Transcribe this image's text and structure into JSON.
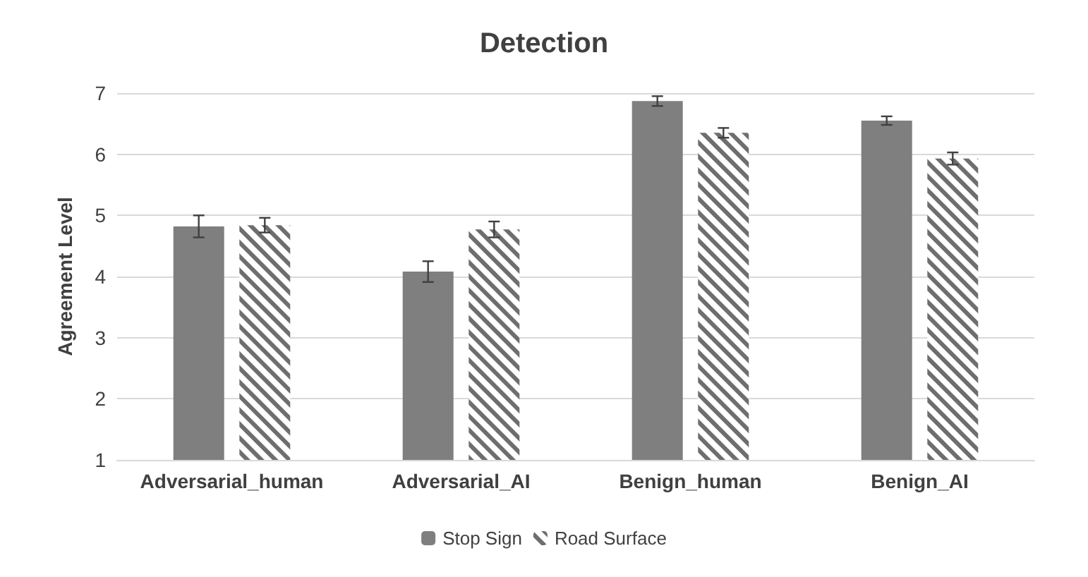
{
  "chart_data": {
    "type": "bar",
    "title": "Detection",
    "ylabel": "Agreement Level",
    "categories": [
      "Adversarial_human",
      "Adversarial_AI",
      "Benign_human",
      "Benign_AI"
    ],
    "series": [
      {
        "name": "Stop Sign",
        "color": "#7f7f7f",
        "values": [
          4.82,
          4.08,
          6.87,
          6.55
        ],
        "errors": [
          0.18,
          0.17,
          0.08,
          0.07
        ]
      },
      {
        "name": "Road Surface",
        "color": "#6e6e6e",
        "values": [
          4.84,
          4.77,
          6.35,
          5.93
        ],
        "errors": [
          0.12,
          0.13,
          0.08,
          0.1
        ]
      }
    ],
    "ylim": [
      1,
      7
    ],
    "yticks": [
      1,
      2,
      3,
      4,
      5,
      6,
      7
    ],
    "grid": "y",
    "legend": "bottom"
  }
}
